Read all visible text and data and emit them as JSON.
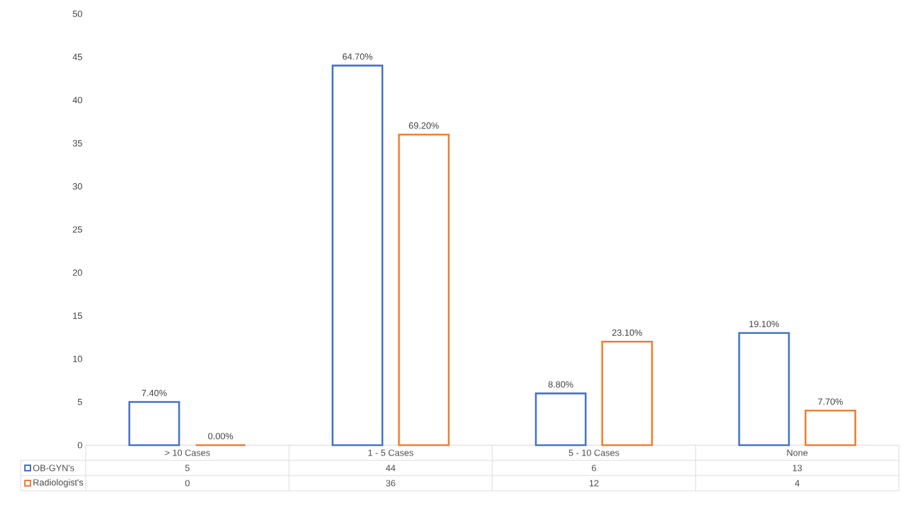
{
  "chart_data": {
    "type": "bar",
    "categories": [
      "> 10 Cases",
      "1 - 5 Cases",
      "5 - 10 Cases",
      "None"
    ],
    "series": [
      {
        "name": "OB-GYN's",
        "color": "#4472c4",
        "values": [
          5,
          44,
          6,
          13
        ]
      },
      {
        "name": "Radiologist's",
        "color": "#ed7d31",
        "values": [
          0,
          36,
          12,
          4
        ]
      }
    ],
    "annotations": [
      "7.40%",
      "0.00%",
      "64.70%",
      "69.20%",
      "8.80%",
      "23.10%",
      "19.10%",
      "7.70%"
    ],
    "ylim": [
      0,
      50
    ],
    "yticks": [
      0,
      5,
      10,
      15,
      20,
      25,
      30,
      35,
      40,
      45,
      50
    ],
    "data_labels": true,
    "legend": "bottom",
    "grid": false
  }
}
